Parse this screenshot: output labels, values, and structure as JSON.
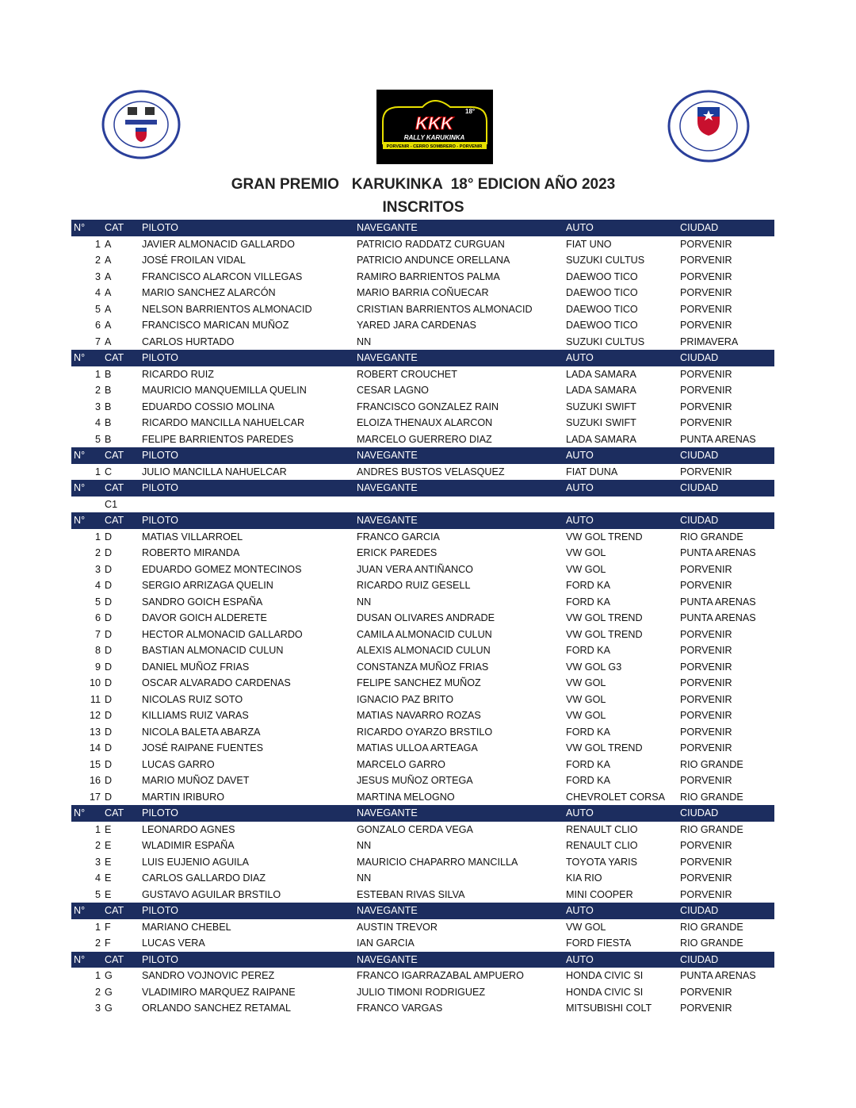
{
  "logos": {
    "left": "CLUB 18 DE SEPTIEMBRE PORVENIR R. AUTOMOVILISMO",
    "center": "KKK 18° RALLY KARUKINKA PORVENIR - CERRO SOMBRERO - PORVENIR",
    "right": "CLUB SOCIAL Y DEPORTIVO 18 DE SEPTIEMBRE"
  },
  "title": "GRAN PREMIO   KARUKINKA  18° EDICION AÑO 2023",
  "subtitle": "INSCRITOS",
  "colors": {
    "header_bg": "#1c2d5f",
    "header_text": "#ffffff"
  },
  "columns": [
    "N°",
    "CAT",
    "PILOTO",
    "NAVEGANTE",
    "AUTO",
    "CIUDAD"
  ],
  "sections": [
    {
      "has_ciudad": true,
      "rows": [
        [
          "1",
          "A",
          "JAVIER ALMONACID GALLARDO",
          "PATRICIO RADDATZ CURGUAN",
          "FIAT UNO",
          "PORVENIR"
        ],
        [
          "2",
          "A",
          "JOSÉ FROILAN VIDAL",
          "PATRICIO ANDUNCE ORELLANA",
          "SUZUKI CULTUS",
          "PORVENIR"
        ],
        [
          "3",
          "A",
          "FRANCISCO ALARCON VILLEGAS",
          "RAMIRO BARRIENTOS PALMA",
          "DAEWOO TICO",
          "PORVENIR"
        ],
        [
          "4",
          "A",
          "MARIO SANCHEZ ALARCÓN",
          "MARIO BARRIA COÑUECAR",
          "DAEWOO TICO",
          "PORVENIR"
        ],
        [
          "5",
          "A",
          "NELSON BARRIENTOS ALMONACID",
          "CRISTIAN BARRIENTOS ALMONACID",
          "DAEWOO TICO",
          "PORVENIR"
        ],
        [
          "6",
          "A",
          "FRANCISCO MARICAN MUÑOZ",
          "YARED JARA CARDENAS",
          "DAEWOO TICO",
          "PORVENIR"
        ],
        [
          "7",
          "A",
          "CARLOS HURTADO",
          "NN",
          "SUZUKI CULTUS",
          "PRIMAVERA"
        ]
      ]
    },
    {
      "has_ciudad": true,
      "rows": [
        [
          "1",
          "B",
          "RICARDO RUIZ",
          "ROBERT CROUCHET",
          "LADA SAMARA",
          "PORVENIR"
        ],
        [
          "2",
          "B",
          "MAURICIO MANQUEMILLA QUELIN",
          "CESAR LAGNO",
          "LADA SAMARA",
          "PORVENIR"
        ],
        [
          "3",
          "B",
          "EDUARDO COSSIO MOLINA",
          "FRANCISCO GONZALEZ RAIN",
          "SUZUKI SWIFT",
          "PORVENIR"
        ],
        [
          "4",
          "B",
          "RICARDO MANCILLA NAHUELCAR",
          "ELOIZA THENAUX ALARCON",
          "SUZUKI SWIFT",
          "PORVENIR"
        ],
        [
          "5",
          "B",
          "FELIPE BARRIENTOS PAREDES",
          "MARCELO GUERRERO DIAZ",
          "LADA SAMARA",
          "PUNTA ARENAS"
        ]
      ]
    },
    {
      "has_ciudad": true,
      "rows": [
        [
          "1",
          "C",
          "JULIO MANCILLA NAHUELCAR",
          "ANDRES BUSTOS VELASQUEZ",
          "FIAT DUNA",
          "PORVENIR"
        ]
      ]
    },
    {
      "has_ciudad": true,
      "rows": [
        [
          "",
          "C1",
          "",
          "",
          "",
          ""
        ]
      ]
    },
    {
      "has_ciudad": true,
      "rows": [
        [
          "1",
          "D",
          "MATIAS VILLARROEL",
          "FRANCO GARCIA",
          "VW GOL TREND",
          "RIO GRANDE"
        ],
        [
          "2",
          "D",
          "ROBERTO MIRANDA",
          "ERICK PAREDES",
          "VW GOL",
          "PUNTA ARENAS"
        ],
        [
          "3",
          "D",
          "EDUARDO GOMEZ MONTECINOS",
          "JUAN VERA ANTIÑANCO",
          "VW GOL",
          "PORVENIR"
        ],
        [
          "4",
          "D",
          "SERGIO ARRIZAGA QUELIN",
          "RICARDO RUIZ GESELL",
          "FORD KA",
          "PORVENIR"
        ],
        [
          "5",
          "D",
          "SANDRO GOICH ESPAÑA",
          "NN",
          "FORD KA",
          "PUNTA ARENAS"
        ],
        [
          "6",
          "D",
          "DAVOR GOICH ALDERETE",
          "DUSAN OLIVARES ANDRADE",
          "VW GOL TREND",
          "PUNTA ARENAS"
        ],
        [
          "7",
          "D",
          "HECTOR ALMONACID GALLARDO",
          "CAMILA ALMONACID CULUN",
          "VW GOL TREND",
          "PORVENIR"
        ],
        [
          "8",
          "D",
          "BASTIAN ALMONACID CULUN",
          "ALEXIS ALMONACID CULUN",
          "FORD KA",
          "PORVENIR"
        ],
        [
          "9",
          "D",
          "DANIEL MUÑOZ FRIAS",
          "CONSTANZA MUÑOZ FRIAS",
          "VW GOL G3",
          "PORVENIR"
        ],
        [
          "10",
          "D",
          "OSCAR ALVARADO CARDENAS",
          "FELIPE SANCHEZ MUÑOZ",
          "VW GOL",
          "PORVENIR"
        ],
        [
          "11",
          "D",
          "NICOLAS RUIZ SOTO",
          "IGNACIO PAZ BRITO",
          "VW GOL",
          "PORVENIR"
        ],
        [
          "12",
          "D",
          "KILLIAMS RUIZ VARAS",
          "MATIAS NAVARRO ROZAS",
          "VW GOL",
          "PORVENIR"
        ],
        [
          "13",
          "D",
          "NICOLA BALETA ABARZA",
          "RICARDO OYARZO BRSTILO",
          "FORD KA",
          "PORVENIR"
        ],
        [
          "14",
          "D",
          "JOSÉ RAIPANE FUENTES",
          "MATIAS ULLOA ARTEAGA",
          "VW GOL TREND",
          "PORVENIR"
        ],
        [
          "15",
          "D",
          "LUCAS GARRO",
          "MARCELO GARRO",
          "FORD KA",
          "RIO GRANDE"
        ],
        [
          "16",
          "D",
          "MARIO MUÑOZ DAVET",
          "JESUS MUÑOZ ORTEGA",
          "FORD KA",
          "PORVENIR"
        ],
        [
          "17",
          "D",
          "MARTIN IRIBURO",
          "MARTINA MELOGNO",
          "CHEVROLET CORSA",
          "RIO GRANDE"
        ]
      ]
    },
    {
      "has_ciudad": true,
      "rows": [
        [
          "1",
          "E",
          "LEONARDO AGNES",
          "GONZALO CERDA VEGA",
          "RENAULT CLIO",
          "RIO GRANDE"
        ],
        [
          "2",
          "E",
          "WLADIMIR ESPAÑA",
          "NN",
          "RENAULT CLIO",
          "PORVENIR"
        ],
        [
          "3",
          "E",
          "LUIS EUJENIO AGUILA",
          "MAURICIO CHAPARRO MANCILLA",
          "TOYOTA YARIS",
          "PORVENIR"
        ],
        [
          "4",
          "E",
          "CARLOS GALLARDO DIAZ",
          "NN",
          "KIA RIO",
          "PORVENIR"
        ],
        [
          "5",
          "E",
          "GUSTAVO AGUILAR BRSTILO",
          "ESTEBAN RIVAS SILVA",
          "MINI COOPER",
          "PORVENIR"
        ]
      ]
    },
    {
      "has_ciudad": true,
      "rows": [
        [
          "1",
          "F",
          "MARIANO CHEBEL",
          "AUSTIN TREVOR",
          "VW GOL",
          "RIO GRANDE"
        ],
        [
          "2",
          "F",
          "LUCAS VERA",
          "IAN GARCIA",
          "FORD FIESTA",
          "RIO GRANDE"
        ]
      ]
    },
    {
      "has_ciudad": true,
      "rows": [
        [
          "1",
          "G",
          "SANDRO VOJNOVIC PEREZ",
          "FRANCO IGARRAZABAL AMPUERO",
          "HONDA CIVIC SI",
          "PUNTA ARENAS"
        ],
        [
          "2",
          "G",
          "VLADIMIRO MARQUEZ RAIPANE",
          "JULIO TIMONI RODRIGUEZ",
          "HONDA CIVIC SI",
          "PORVENIR"
        ],
        [
          "3",
          "G",
          "ORLANDO SANCHEZ RETAMAL",
          "FRANCO VARGAS",
          "MITSUBISHI COLT",
          "PORVENIR"
        ]
      ]
    }
  ]
}
